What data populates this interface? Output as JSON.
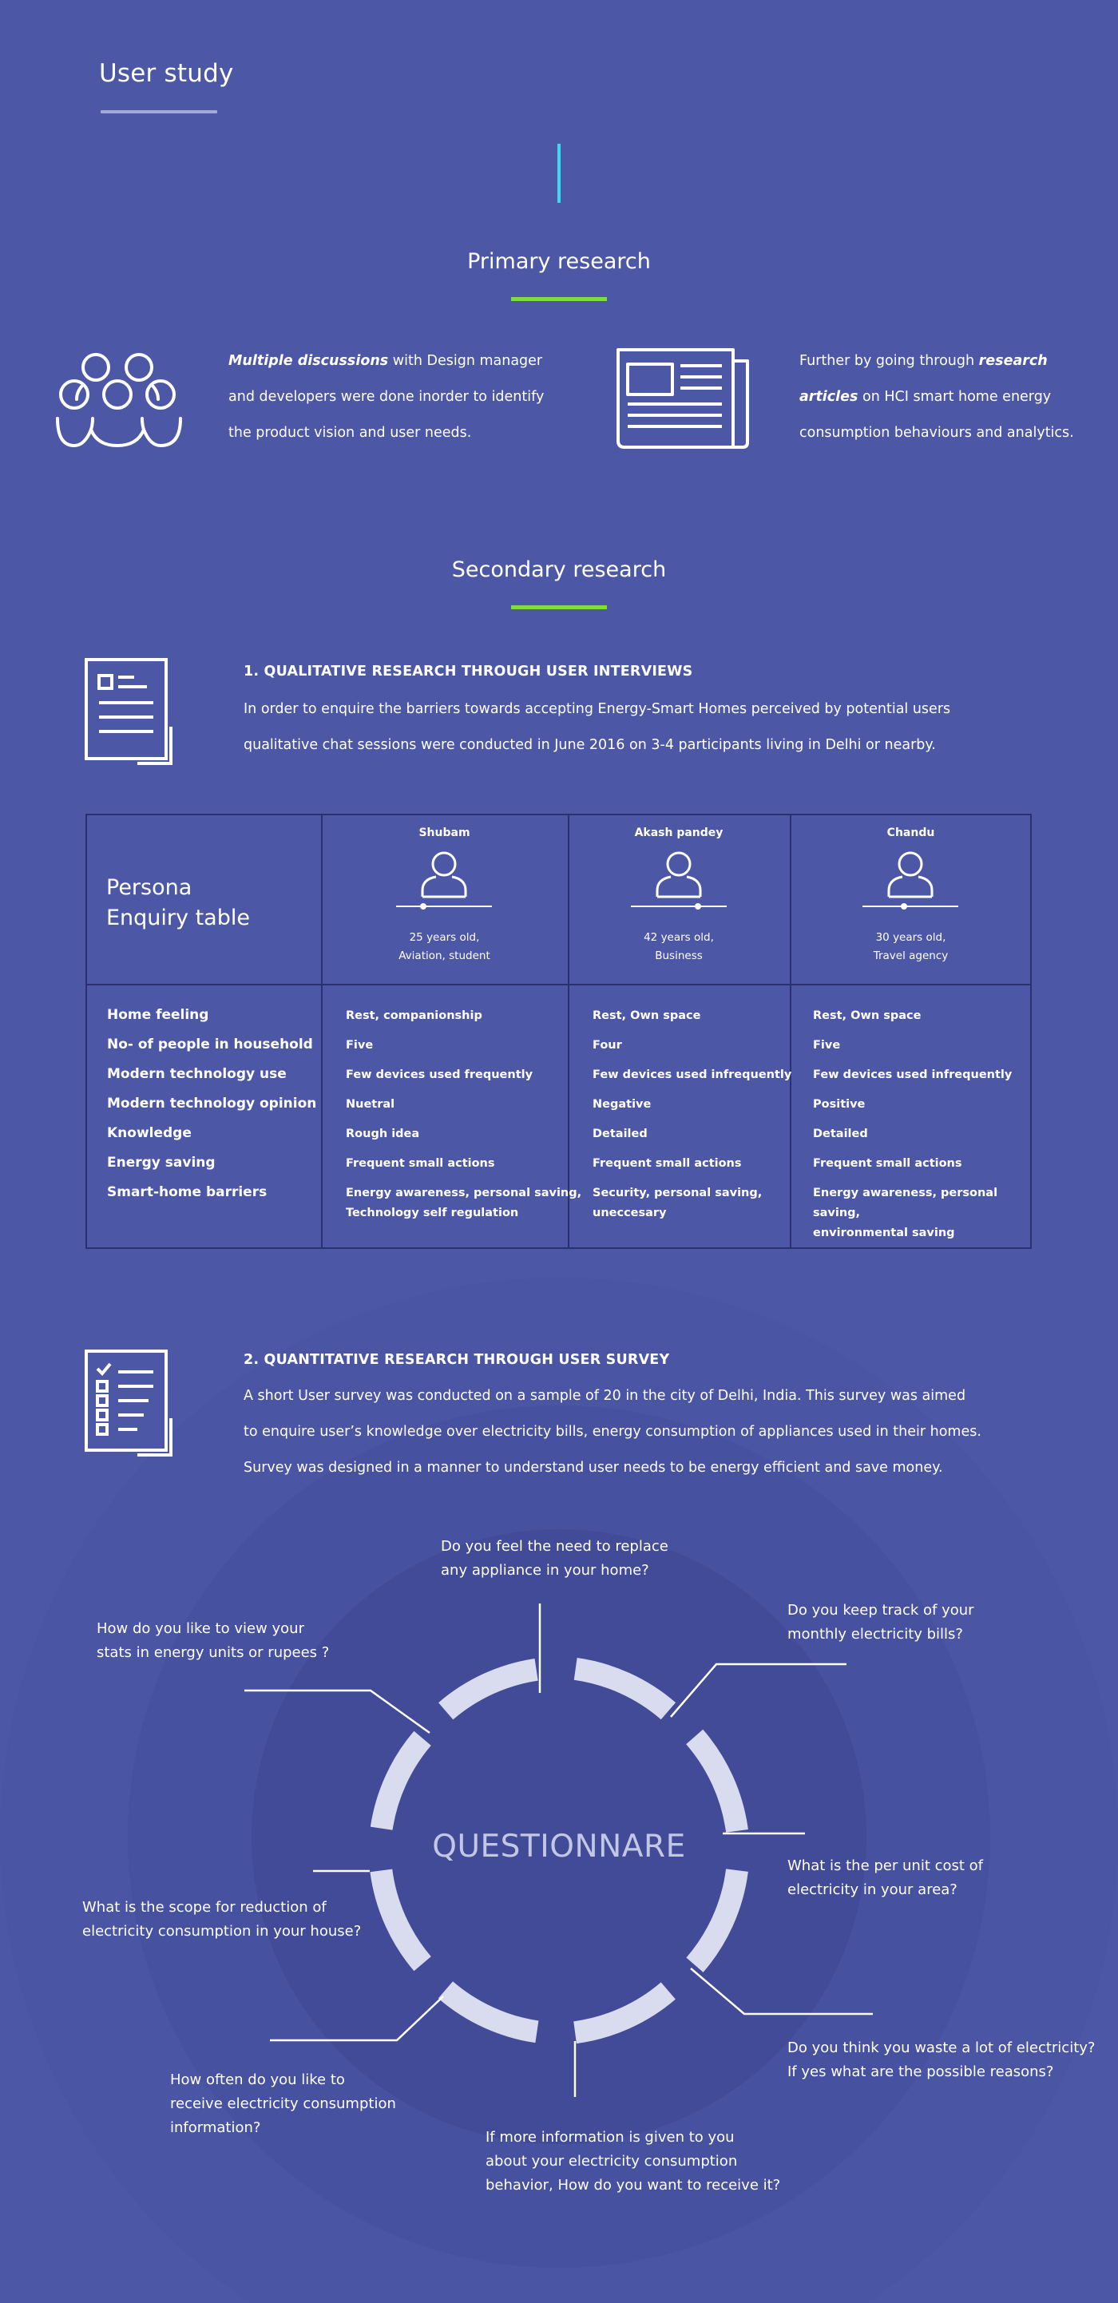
{
  "header": {
    "title": "User study"
  },
  "primary": {
    "heading": "Primary research",
    "left_emph": "Multiple discussions",
    "left_rest_1": " with Design manager",
    "left_line_2": "and developers were done inorder to identify",
    "left_line_3": "the product vision and user needs.",
    "right_line_1_plain": "Further by going through ",
    "right_emph_1": "research",
    "right_emph_2": "articles",
    "right_line_2_rest": " on HCI smart home energy",
    "right_line_3": "consumption behaviours and analytics."
  },
  "secondary": {
    "heading": "Secondary research",
    "qual": {
      "title": "1. QUALITATIVE RESEARCH THROUGH USER INTERVIEWS",
      "line_1": "In order to enquire the barriers towards accepting Energy-Smart Homes perceived by potential users",
      "line_2": "qualitative chat sessions were conducted in June 2016 on 3-4 participants living in Delhi or nearby."
    },
    "table": {
      "title_1": "Persona",
      "title_2": "Enquiry table",
      "personas": [
        {
          "name": "Shubam",
          "age": "25 years old,",
          "role": "Aviation, student"
        },
        {
          "name": "Akash pandey",
          "age": "42 years old,",
          "role": "Business"
        },
        {
          "name": "Chandu",
          "age": "30 years old,",
          "role": "Travel agency"
        }
      ],
      "row_labels": [
        "Home feeling",
        "No- of people in household",
        "Modern technology use",
        "Modern technology opinion",
        "Knowledge",
        "Energy saving",
        "Smart-home barriers"
      ],
      "columns": [
        [
          "Rest, companionship",
          "Five",
          "Few devices used frequently",
          "Nuetral",
          "Rough idea",
          "Frequent small actions",
          "Energy awareness, personal saving,",
          "Technology self regulation"
        ],
        [
          "Rest, Own space",
          "Four",
          "Few devices used infrequently",
          "Negative",
          "Detailed",
          "Frequent small actions",
          "Security, personal saving,",
          "uneccesary"
        ],
        [
          "Rest, Own space",
          "Five",
          "Few devices used infrequently",
          "Positive",
          "Detailed",
          "Frequent small actions",
          "Energy awareness, personal saving,",
          "environmental saving"
        ]
      ]
    },
    "quant": {
      "title": "2. QUANTITATIVE RESEARCH THROUGH USER SURVEY",
      "line_1": "A short User survey was conducted on a sample of 20 in the city of Delhi, India. This survey was aimed",
      "line_2": "to enquire user’s knowledge over electricity bills, energy consumption of appliances used in their homes.",
      "line_3": "Survey was designed in a manner to understand user needs to be energy efficient and save money."
    },
    "questionnaire": {
      "center": "QUESTIONNARE",
      "q1": [
        "Do you feel the need to replace",
        "any appliance in your home?"
      ],
      "q2": [
        "Do you keep track of your",
        "monthly electricity bills?"
      ],
      "q3": [
        "What is the per unit cost of",
        "electricity in your area?"
      ],
      "q4": [
        "Do you think you waste a lot of electricity?",
        "If yes what are the possible reasons?"
      ],
      "q5": [
        "If more information is given to you",
        "about your electricity consumption",
        "behavior, How do you want to receive it?"
      ],
      "q6": [
        "How often do you like to",
        "receive electricity consumption",
        "information?"
      ],
      "q7": [
        "What is the scope for reduction of",
        "electricity consumption in your house?"
      ],
      "q8": [
        "How do you like to view your",
        "stats in energy units or rupees ?"
      ]
    }
  },
  "colors": {
    "background": "#4c58a6",
    "accent_green": "#7be03c",
    "accent_cyan": "#40d8f0",
    "table_border": "#2a3170"
  }
}
